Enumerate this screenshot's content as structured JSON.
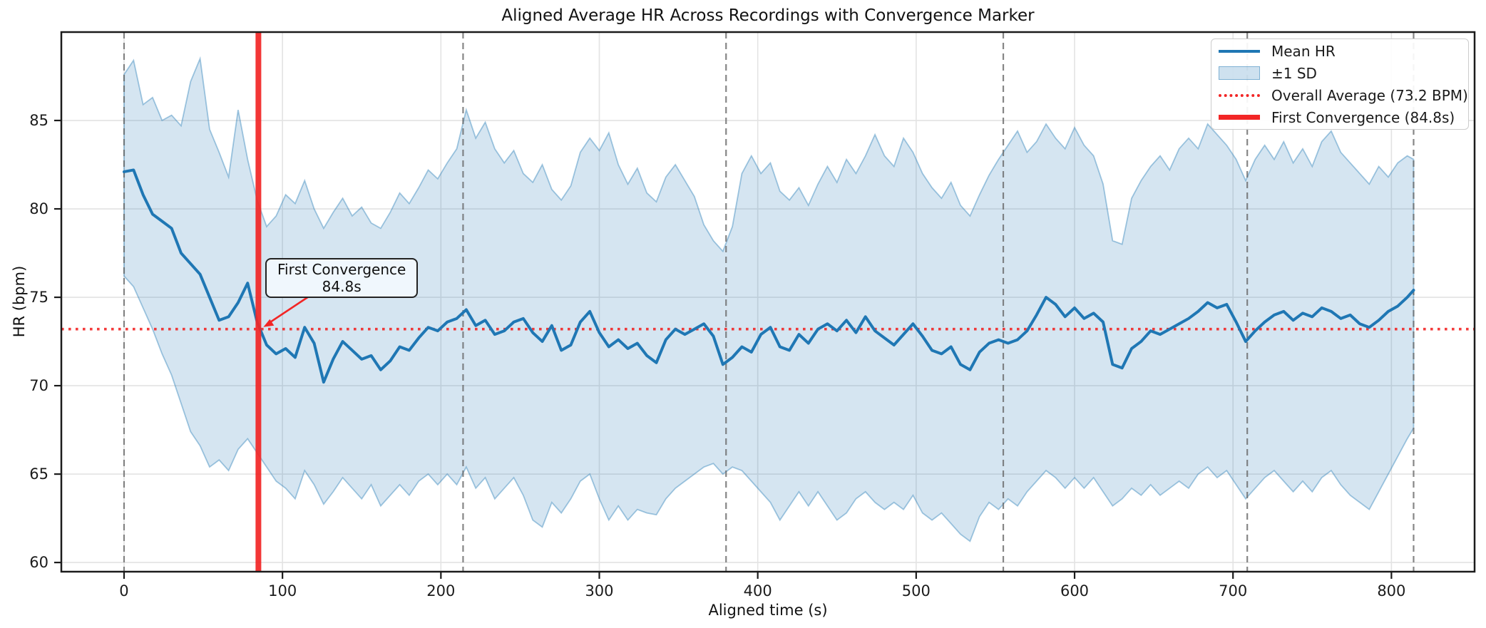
{
  "header": {
    "window_title": "Aligned Average HR Across Recordings with Convergence Marker"
  },
  "annotation": {
    "line1": "First Convergence",
    "line2": "84.8s"
  },
  "legend": {
    "items": [
      {
        "label": "Mean HR",
        "sample": "solid-blue-line"
      },
      {
        "label": "±1 SD",
        "sample": "light-blue-band-patch"
      },
      {
        "label": "Overall Average (73.2 BPM)",
        "sample": "dotted-red-line"
      },
      {
        "label": "First Convergence (84.8s)",
        "sample": "thick-red-line"
      }
    ]
  },
  "colors": {
    "mean_line": "#1f77b4",
    "band_fill": "rgba(31,119,180,0.19)",
    "band_edge": "rgba(31,119,180,0.40)",
    "red": "#f22626",
    "boundary_gray": "#696969",
    "grid": "#e3e3e3",
    "spine": "#1b1b1b"
  },
  "chart_data": {
    "type": "line",
    "title": "Aligned Average HR Across Recordings with Convergence Marker",
    "xlabel": "Aligned time (s)",
    "ylabel": "HR (bpm)",
    "xlim": [
      -39.6,
      852.5
    ],
    "ylim": [
      59.48,
      90.0
    ],
    "xticks": [
      0,
      100,
      200,
      300,
      400,
      500,
      600,
      700,
      800
    ],
    "yticks": [
      60,
      65,
      70,
      75,
      80,
      85
    ],
    "grid": true,
    "legend_position": "upper right",
    "overall_average_bpm": 73.2,
    "first_convergence_s": 84.8,
    "recording_boundaries_s": [
      0,
      214,
      380,
      555,
      709,
      814
    ],
    "t": [
      0,
      6,
      12,
      18,
      24,
      30,
      36,
      42,
      48,
      54,
      60,
      66,
      72,
      78,
      84,
      90,
      96,
      102,
      108,
      114,
      120,
      126,
      132,
      138,
      144,
      150,
      156,
      162,
      168,
      174,
      180,
      186,
      192,
      198,
      204,
      210,
      216,
      222,
      228,
      234,
      240,
      246,
      252,
      258,
      264,
      270,
      276,
      282,
      288,
      294,
      300,
      306,
      312,
      318,
      324,
      330,
      336,
      342,
      348,
      354,
      360,
      366,
      372,
      378,
      384,
      390,
      396,
      402,
      408,
      414,
      420,
      426,
      432,
      438,
      444,
      450,
      456,
      462,
      468,
      474,
      480,
      486,
      492,
      498,
      504,
      510,
      516,
      522,
      528,
      534,
      540,
      546,
      552,
      558,
      564,
      570,
      576,
      582,
      588,
      594,
      600,
      606,
      612,
      618,
      624,
      630,
      636,
      642,
      648,
      654,
      660,
      666,
      672,
      678,
      684,
      690,
      696,
      702,
      708,
      714,
      720,
      726,
      732,
      738,
      744,
      750,
      756,
      762,
      768,
      774,
      780,
      786,
      792,
      798,
      804,
      810,
      814
    ],
    "series": [
      {
        "name": "Mean HR",
        "values": [
          82.1,
          82.2,
          80.8,
          79.7,
          79.3,
          78.9,
          77.5,
          76.9,
          76.3,
          75.0,
          73.7,
          73.9,
          74.7,
          75.8,
          73.6,
          72.3,
          71.8,
          72.1,
          71.6,
          73.3,
          72.4,
          70.2,
          71.5,
          72.5,
          72.0,
          71.5,
          71.7,
          70.9,
          71.4,
          72.2,
          72.0,
          72.7,
          73.3,
          73.1,
          73.6,
          73.8,
          74.3,
          73.4,
          73.7,
          72.9,
          73.1,
          73.6,
          73.8,
          73.0,
          72.5,
          73.4,
          72.0,
          72.3,
          73.6,
          74.2,
          73.0,
          72.2,
          72.6,
          72.1,
          72.4,
          71.7,
          71.3,
          72.6,
          73.2,
          72.9,
          73.2,
          73.5,
          72.8,
          71.2,
          71.6,
          72.2,
          71.9,
          72.9,
          73.3,
          72.2,
          72.0,
          72.9,
          72.4,
          73.2,
          73.5,
          73.1,
          73.7,
          73.0,
          73.9,
          73.1,
          72.7,
          72.3,
          72.9,
          73.5,
          72.8,
          72.0,
          71.8,
          72.2,
          71.2,
          70.9,
          71.9,
          72.4,
          72.6,
          72.4,
          72.6,
          73.1,
          74.0,
          75.0,
          74.6,
          73.9,
          74.4,
          73.8,
          74.1,
          73.6,
          71.2,
          71.0,
          72.1,
          72.5,
          73.1,
          72.9,
          73.2,
          73.5,
          73.8,
          74.2,
          74.7,
          74.4,
          74.6,
          73.6,
          72.5,
          73.1,
          73.6,
          74.0,
          74.2,
          73.7,
          74.1,
          73.9,
          74.4,
          74.2,
          73.8,
          74.0,
          73.5,
          73.3,
          73.7,
          74.2,
          74.5,
          75.0,
          75.4
        ]
      },
      {
        "name": "+1 SD upper bound",
        "values": [
          87.6,
          88.4,
          85.9,
          86.3,
          85.0,
          85.3,
          84.7,
          87.2,
          88.5,
          84.5,
          83.2,
          81.8,
          85.6,
          82.8,
          80.5,
          79.0,
          79.6,
          80.8,
          80.3,
          81.6,
          80.0,
          78.9,
          79.8,
          80.6,
          79.6,
          80.1,
          79.2,
          78.9,
          79.8,
          80.9,
          80.3,
          81.2,
          82.2,
          81.7,
          82.6,
          83.4,
          85.6,
          84.0,
          84.9,
          83.4,
          82.6,
          83.3,
          82.0,
          81.5,
          82.5,
          81.1,
          80.5,
          81.3,
          83.2,
          84.0,
          83.3,
          84.3,
          82.5,
          81.4,
          82.3,
          80.9,
          80.4,
          81.8,
          82.5,
          81.6,
          80.7,
          79.1,
          78.2,
          77.6,
          79.0,
          82.0,
          83.0,
          82.0,
          82.6,
          81.0,
          80.5,
          81.2,
          80.2,
          81.4,
          82.4,
          81.5,
          82.8,
          82.0,
          83.0,
          84.2,
          83.0,
          82.4,
          84.0,
          83.2,
          82.0,
          81.2,
          80.6,
          81.5,
          80.2,
          79.6,
          80.8,
          81.9,
          82.8,
          83.6,
          84.4,
          83.2,
          83.8,
          84.8,
          84.0,
          83.4,
          84.6,
          83.6,
          83.0,
          81.4,
          78.2,
          78.0,
          80.6,
          81.6,
          82.4,
          83.0,
          82.2,
          83.4,
          84.0,
          83.4,
          84.8,
          84.2,
          83.6,
          82.8,
          81.6,
          82.8,
          83.6,
          82.8,
          83.8,
          82.6,
          83.4,
          82.4,
          83.8,
          84.4,
          83.2,
          82.6,
          82.0,
          81.4,
          82.4,
          81.8,
          82.6,
          83.0,
          82.8
        ]
      },
      {
        "name": "-1 SD lower bound",
        "values": [
          76.2,
          75.6,
          74.4,
          73.2,
          71.8,
          70.6,
          69.0,
          67.4,
          66.6,
          65.4,
          65.8,
          65.2,
          66.4,
          67.0,
          66.2,
          65.4,
          64.6,
          64.2,
          63.6,
          65.2,
          64.4,
          63.3,
          64.0,
          64.8,
          64.2,
          63.6,
          64.4,
          63.2,
          63.8,
          64.4,
          63.8,
          64.6,
          65.0,
          64.4,
          65.0,
          64.4,
          65.4,
          64.2,
          64.8,
          63.6,
          64.2,
          64.8,
          63.8,
          62.4,
          62.0,
          63.4,
          62.8,
          63.6,
          64.6,
          65.0,
          63.6,
          62.4,
          63.2,
          62.4,
          63.0,
          62.8,
          62.7,
          63.6,
          64.2,
          64.6,
          65.0,
          65.4,
          65.6,
          65.0,
          65.4,
          65.2,
          64.6,
          64.0,
          63.4,
          62.4,
          63.2,
          64.0,
          63.2,
          64.0,
          63.2,
          62.4,
          62.8,
          63.6,
          64.0,
          63.4,
          63.0,
          63.4,
          63.0,
          63.8,
          62.8,
          62.4,
          62.8,
          62.2,
          61.6,
          61.2,
          62.6,
          63.4,
          63.0,
          63.6,
          63.2,
          64.0,
          64.6,
          65.2,
          64.8,
          64.2,
          64.8,
          64.2,
          64.8,
          64.0,
          63.2,
          63.6,
          64.2,
          63.8,
          64.4,
          63.8,
          64.2,
          64.6,
          64.2,
          65.0,
          65.4,
          64.8,
          65.2,
          64.4,
          63.6,
          64.2,
          64.8,
          65.2,
          64.6,
          64.0,
          64.6,
          64.0,
          64.8,
          65.2,
          64.4,
          63.8,
          63.4,
          63.0,
          64.0,
          65.0,
          66.0,
          67.0,
          67.6
        ]
      }
    ]
  }
}
